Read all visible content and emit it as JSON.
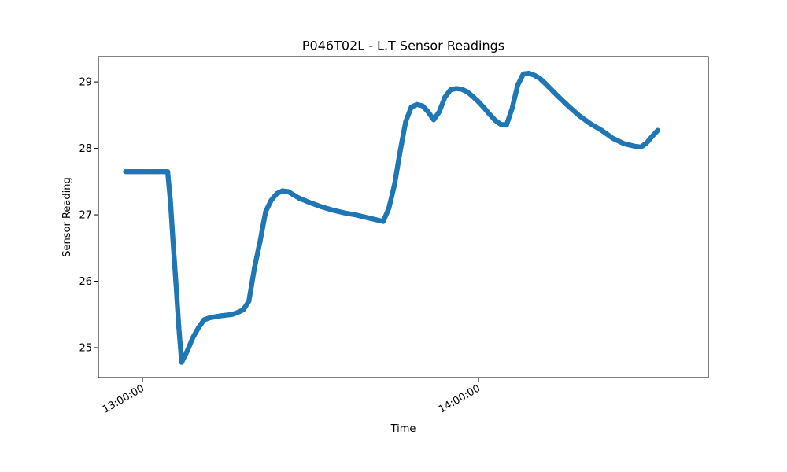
{
  "chart_data": {
    "type": "scatter",
    "title": "P046T02L - L.T Sensor Readings",
    "xlabel": "Time",
    "ylabel": "Sensor Reading",
    "x_ticks": [
      "13:00:00",
      "14:00:00"
    ],
    "y_ticks": [
      25,
      26,
      27,
      28,
      29
    ],
    "ylim": [
      24.55,
      29.38
    ],
    "grid": false,
    "marker_color": "#1f77b4",
    "series": [
      {
        "points": [
          [
            "12:57:00",
            27.65
          ],
          [
            "12:58:00",
            27.65
          ],
          [
            "12:59:00",
            27.65
          ],
          [
            "13:00:00",
            27.65
          ],
          [
            "13:01:00",
            27.65
          ],
          [
            "13:02:00",
            27.65
          ],
          [
            "13:03:00",
            27.65
          ],
          [
            "13:04:00",
            27.65
          ],
          [
            "13:04:30",
            27.65
          ],
          [
            "13:05:00",
            27.2
          ],
          [
            "13:05:30",
            26.55
          ],
          [
            "13:06:00",
            25.95
          ],
          [
            "13:06:30",
            25.3
          ],
          [
            "13:07:00",
            24.78
          ],
          [
            "13:08:00",
            24.95
          ],
          [
            "13:09:00",
            25.15
          ],
          [
            "13:10:00",
            25.3
          ],
          [
            "13:11:00",
            25.42
          ],
          [
            "13:12:00",
            25.45
          ],
          [
            "13:14:00",
            25.48
          ],
          [
            "13:16:00",
            25.5
          ],
          [
            "13:17:00",
            25.53
          ],
          [
            "13:18:00",
            25.57
          ],
          [
            "13:19:00",
            25.7
          ],
          [
            "13:20:00",
            26.2
          ],
          [
            "13:21:00",
            26.6
          ],
          [
            "13:22:00",
            27.05
          ],
          [
            "13:23:00",
            27.22
          ],
          [
            "13:24:00",
            27.32
          ],
          [
            "13:25:00",
            27.36
          ],
          [
            "13:26:00",
            27.35
          ],
          [
            "13:28:00",
            27.25
          ],
          [
            "13:30:00",
            27.18
          ],
          [
            "13:32:00",
            27.12
          ],
          [
            "13:34:00",
            27.07
          ],
          [
            "13:36:00",
            27.03
          ],
          [
            "13:38:00",
            27.0
          ],
          [
            "13:40:00",
            26.96
          ],
          [
            "13:42:00",
            26.92
          ],
          [
            "13:43:00",
            26.9
          ],
          [
            "13:44:00",
            27.1
          ],
          [
            "13:45:00",
            27.45
          ],
          [
            "13:46:00",
            27.95
          ],
          [
            "13:47:00",
            28.4
          ],
          [
            "13:48:00",
            28.62
          ],
          [
            "13:49:00",
            28.66
          ],
          [
            "13:50:00",
            28.64
          ],
          [
            "13:51:00",
            28.55
          ],
          [
            "13:52:00",
            28.43
          ],
          [
            "13:53:00",
            28.55
          ],
          [
            "13:54:00",
            28.77
          ],
          [
            "13:55:00",
            28.88
          ],
          [
            "13:56:00",
            28.9
          ],
          [
            "13:57:00",
            28.89
          ],
          [
            "13:58:00",
            28.85
          ],
          [
            "13:59:00",
            28.78
          ],
          [
            "14:00:00",
            28.7
          ],
          [
            "14:01:00",
            28.61
          ],
          [
            "14:02:00",
            28.51
          ],
          [
            "14:03:00",
            28.42
          ],
          [
            "14:04:00",
            28.36
          ],
          [
            "14:05:00",
            28.35
          ],
          [
            "14:06:00",
            28.6
          ],
          [
            "14:07:00",
            28.95
          ],
          [
            "14:08:00",
            29.12
          ],
          [
            "14:09:00",
            29.13
          ],
          [
            "14:10:00",
            29.1
          ],
          [
            "14:11:00",
            29.05
          ],
          [
            "14:12:00",
            28.97
          ],
          [
            "14:14:00",
            28.8
          ],
          [
            "14:16:00",
            28.64
          ],
          [
            "14:18:00",
            28.49
          ],
          [
            "14:20:00",
            28.37
          ],
          [
            "14:22:00",
            28.27
          ],
          [
            "14:24:00",
            28.15
          ],
          [
            "14:26:00",
            28.07
          ],
          [
            "14:28:00",
            28.03
          ],
          [
            "14:29:00",
            28.02
          ],
          [
            "14:30:00",
            28.08
          ],
          [
            "14:31:00",
            28.18
          ],
          [
            "14:32:00",
            28.27
          ]
        ]
      }
    ]
  }
}
